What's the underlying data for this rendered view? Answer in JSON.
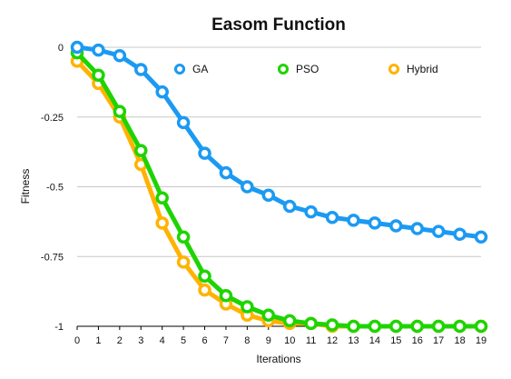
{
  "chart_data": {
    "type": "line",
    "title": "Easom Function",
    "xlabel": "Iterations",
    "ylabel": "Fitness",
    "x": [
      0,
      1,
      2,
      3,
      4,
      5,
      6,
      7,
      8,
      9,
      10,
      11,
      12,
      13,
      14,
      15,
      16,
      17,
      18,
      19
    ],
    "xlim": [
      0,
      19
    ],
    "ylim": [
      -1,
      0
    ],
    "yticks": [
      {
        "value": 0,
        "label": "0"
      },
      {
        "value": -0.25,
        "label": "-0.25"
      },
      {
        "value": -0.5,
        "label": "-0.5"
      },
      {
        "value": -0.75,
        "label": "-0.75"
      },
      {
        "value": -1,
        "label": "-1"
      }
    ],
    "xticks": [
      {
        "value": 0,
        "label": "0"
      },
      {
        "value": 1,
        "label": "1"
      },
      {
        "value": 2,
        "label": "2"
      },
      {
        "value": 3,
        "label": "3"
      },
      {
        "value": 4,
        "label": "4"
      },
      {
        "value": 5,
        "label": "5"
      },
      {
        "value": 6,
        "label": "6"
      },
      {
        "value": 7,
        "label": "7"
      },
      {
        "value": 8,
        "label": "8"
      },
      {
        "value": 9,
        "label": "9"
      },
      {
        "value": 10,
        "label": "10"
      },
      {
        "value": 11,
        "label": "11"
      },
      {
        "value": 12,
        "label": "12"
      },
      {
        "value": 13,
        "label": "13"
      },
      {
        "value": 14,
        "label": "14"
      },
      {
        "value": 15,
        "label": "15"
      },
      {
        "value": 16,
        "label": "16"
      },
      {
        "value": 17,
        "label": "17"
      },
      {
        "value": 18,
        "label": "18"
      },
      {
        "value": 19,
        "label": "19"
      }
    ],
    "grid": true,
    "legend_position": "top",
    "series": [
      {
        "name": "Hybrid",
        "color": "#FFB300",
        "values": [
          -0.05,
          -0.13,
          -0.25,
          -0.42,
          -0.63,
          -0.77,
          -0.87,
          -0.92,
          -0.96,
          -0.98,
          -0.99,
          -0.99,
          -1.0,
          -1.0,
          -1.0,
          -1.0,
          -1.0,
          -1.0,
          -1.0,
          -1.0
        ]
      },
      {
        "name": "PSO",
        "color": "#1ED400",
        "values": [
          -0.02,
          -0.1,
          -0.23,
          -0.37,
          -0.54,
          -0.68,
          -0.82,
          -0.89,
          -0.93,
          -0.96,
          -0.98,
          -0.99,
          -0.995,
          -1.0,
          -1.0,
          -1.0,
          -1.0,
          -1.0,
          -1.0,
          -1.0
        ]
      },
      {
        "name": "GA",
        "color": "#1B9AF2",
        "values": [
          0.0,
          -0.01,
          -0.03,
          -0.08,
          -0.16,
          -0.27,
          -0.38,
          -0.45,
          -0.5,
          -0.53,
          -0.57,
          -0.59,
          -0.61,
          -0.62,
          -0.63,
          -0.64,
          -0.65,
          -0.66,
          -0.67,
          -0.68
        ]
      }
    ],
    "legend_order": [
      "GA",
      "PSO",
      "Hybrid"
    ]
  }
}
